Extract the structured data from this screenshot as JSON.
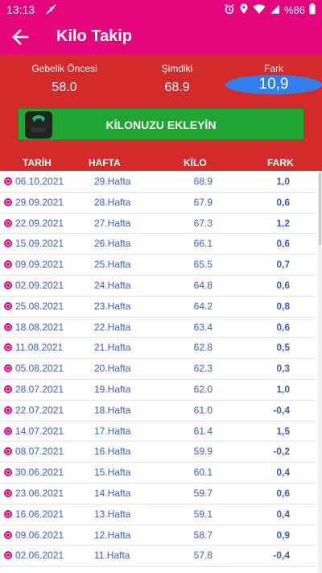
{
  "status_bar": {
    "time": "13:13",
    "battery": "%86",
    "icons": [
      "feather-icon",
      "alarm-icon",
      "location-icon",
      "wifi-icon",
      "signal-icon",
      "battery-icon"
    ]
  },
  "app_bar": {
    "title": "Kilo Takip",
    "back_icon": "arrow-left-icon"
  },
  "summary": {
    "before_label": "Gebelik Öncesi",
    "before_value": "58.0",
    "now_label": "Şimdiki",
    "now_value": "68.9",
    "diff_label": "Fark",
    "diff_value": "10,9"
  },
  "add_button": {
    "label": "KİLONUZU EKLEYİN",
    "icon": "scale-icon"
  },
  "table": {
    "headers": {
      "date": "TARİH",
      "week": "HAFTA",
      "kilo": "KİLO",
      "diff": "FARK"
    },
    "rows": [
      {
        "date": "06.10.2021",
        "week": "29.Hafta",
        "kilo": "68.9",
        "diff": "1,0"
      },
      {
        "date": "29.09.2021",
        "week": "28.Hafta",
        "kilo": "67.9",
        "diff": "0,6"
      },
      {
        "date": "22.09.2021",
        "week": "27.Hafta",
        "kilo": "67.3",
        "diff": "1,2"
      },
      {
        "date": "15.09.2021",
        "week": "26.Hafta",
        "kilo": "66.1",
        "diff": "0,6"
      },
      {
        "date": "09.09.2021",
        "week": "25.Hafta",
        "kilo": "65.5",
        "diff": "0,7"
      },
      {
        "date": "02.09.2021",
        "week": "24.Hafta",
        "kilo": "64.8",
        "diff": "0,6"
      },
      {
        "date": "25.08.2021",
        "week": "23.Hafta",
        "kilo": "64.2",
        "diff": "0,8"
      },
      {
        "date": "18.08.2021",
        "week": "22.Hafta",
        "kilo": "63.4",
        "diff": "0,6"
      },
      {
        "date": "11.08.2021",
        "week": "21.Hafta",
        "kilo": "62.8",
        "diff": "0,5"
      },
      {
        "date": "05.08.2021",
        "week": "20.Hafta",
        "kilo": "62.3",
        "diff": "0,3"
      },
      {
        "date": "28.07.2021",
        "week": "19.Hafta",
        "kilo": "62.0",
        "diff": "1,0"
      },
      {
        "date": "22.07.2021",
        "week": "18.Hafta",
        "kilo": "61.0",
        "diff": "-0,4"
      },
      {
        "date": "14.07.2021",
        "week": "17.Hafta",
        "kilo": "61.4",
        "diff": "1,5"
      },
      {
        "date": "08.07.2021",
        "week": "16.Hafta",
        "kilo": "59.9",
        "diff": "-0,2"
      },
      {
        "date": "30.06.2021",
        "week": "15.Hafta",
        "kilo": "60.1",
        "diff": "0,4"
      },
      {
        "date": "23.06.2021",
        "week": "14.Hafta",
        "kilo": "59.7",
        "diff": "0,6"
      },
      {
        "date": "16.06.2021",
        "week": "13.Hafta",
        "kilo": "59.1",
        "diff": "0,4"
      },
      {
        "date": "09.06.2021",
        "week": "12.Hafta",
        "kilo": "58.7",
        "diff": "0,9"
      },
      {
        "date": "02.06.2021",
        "week": "11.Hafta",
        "kilo": "57.8",
        "diff": "-0,4"
      }
    ]
  },
  "colors": {
    "brand_pink": "#e5067e",
    "summary_red": "#d52a2a",
    "button_green": "#21a532",
    "pill_blue": "#2f80ed",
    "row_text_blue": "#3b5bd8"
  }
}
